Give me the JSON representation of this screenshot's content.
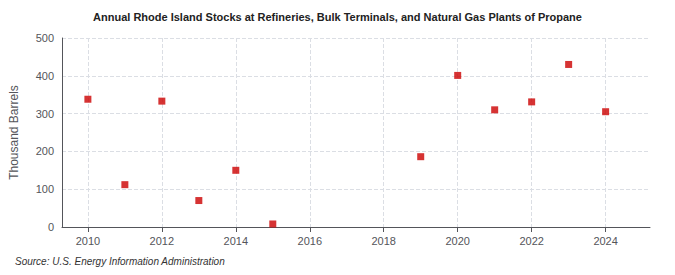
{
  "chart_data": {
    "type": "scatter",
    "title": "Annual Rhode Island Stocks at Refineries, Bulk Terminals, and Natural Gas Plants of Propane",
    "ylabel": "Thousand Barrels",
    "annotations": [
      "Source: U.S. Energy Information Administration"
    ],
    "x": [
      2010,
      2011,
      2012,
      2013,
      2014,
      2015,
      2019,
      2020,
      2021,
      2022,
      2023,
      2024
    ],
    "values": [
      338,
      112,
      333,
      70,
      150,
      8,
      186,
      401,
      310,
      331,
      430,
      305
    ],
    "color": "#cc0000",
    "marker": "square",
    "xlim": [
      2009.3,
      2025.2
    ],
    "xticks": [
      2010,
      2012,
      2014,
      2016,
      2018,
      2020,
      2022,
      2024
    ],
    "ylim": [
      0,
      500
    ],
    "yticks": [
      0,
      100,
      200,
      300,
      400,
      500
    ],
    "grid": true
  }
}
